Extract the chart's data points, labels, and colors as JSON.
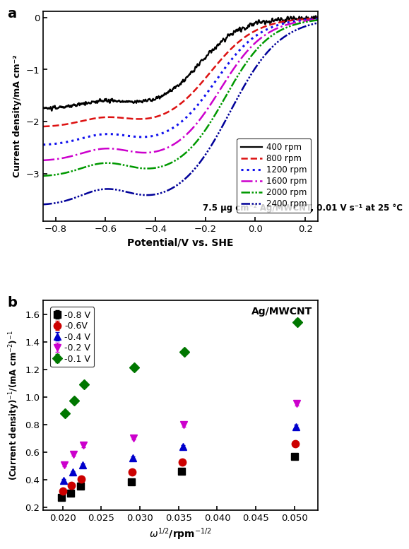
{
  "panel_a": {
    "title": "a",
    "xlabel": "Potential/V vs. SHE",
    "ylabel": "Current density/mA cm⁻²",
    "annotation": "7.5 μg cm⁻² Ag/MWCNT, 0.01 V s⁻¹ at 25 °C",
    "xlim": [
      -0.85,
      0.25
    ],
    "ylim": [
      -3.9,
      0.12
    ],
    "xticks": [
      -0.8,
      -0.6,
      -0.4,
      -0.2,
      0.0,
      0.2
    ],
    "yticks": [
      0,
      -1,
      -2,
      -3
    ],
    "curves": [
      {
        "label": "400 rpm",
        "color": "black",
        "linestyle": "solid",
        "linewidth": 1.6,
        "limit_current": -1.75,
        "midpoint": -0.22,
        "sharpness": 12,
        "noise": 0.035,
        "seed": 1
      },
      {
        "label": "800 rpm",
        "color": "#dd1111",
        "linestyle": "dashed",
        "linewidth": 1.8,
        "limit_current": -2.1,
        "midpoint": -0.18,
        "sharpness": 11,
        "noise": 0.0,
        "seed": 2
      },
      {
        "label": "1200 rpm",
        "color": "#1111ee",
        "linestyle": "dotted",
        "linewidth": 2.2,
        "limit_current": -2.45,
        "midpoint": -0.16,
        "sharpness": 11,
        "noise": 0.0,
        "seed": 3
      },
      {
        "label": "1600 rpm",
        "color": "#cc00cc",
        "linestyle": "dashdot",
        "linewidth": 1.8,
        "limit_current": -2.75,
        "midpoint": -0.14,
        "sharpness": 11,
        "noise": 0.0,
        "seed": 4
      },
      {
        "label": "2000 rpm",
        "color": "#009900",
        "linestyle": "dashdotdotted",
        "linewidth": 1.8,
        "limit_current": -3.05,
        "midpoint": -0.12,
        "sharpness": 11,
        "noise": 0.0,
        "seed": 5
      },
      {
        "label": "2400 rpm",
        "color": "#000099",
        "linestyle": "dashdotted2",
        "linewidth": 1.8,
        "limit_current": -3.6,
        "midpoint": -0.1,
        "sharpness": 10,
        "noise": 0.0,
        "seed": 6
      }
    ]
  },
  "panel_b": {
    "title": "b",
    "annotation": "Ag/MWCNT",
    "xlim": [
      0.0175,
      0.053
    ],
    "ylim": [
      0.18,
      1.7
    ],
    "xticks": [
      0.02,
      0.025,
      0.03,
      0.035,
      0.04,
      0.045,
      0.05
    ],
    "yticks": [
      0.2,
      0.4,
      0.6,
      0.8,
      1.0,
      1.2,
      1.4,
      1.6
    ],
    "series": [
      {
        "label": "-0.8 V",
        "color": "black",
        "marker": "s",
        "x": [
          0.0199,
          0.02108,
          0.02236,
          0.02887,
          0.03536,
          0.05
        ],
        "y": [
          0.27,
          0.305,
          0.355,
          0.385,
          0.46,
          0.57
        ],
        "yerr": [
          0.006,
          0.006,
          0.006,
          0.006,
          0.006,
          0.01
        ]
      },
      {
        "label": "-0.6V",
        "color": "#cc0000",
        "marker": "o",
        "x": [
          0.02,
          0.02118,
          0.02246,
          0.02897,
          0.03546,
          0.0501
        ],
        "y": [
          0.32,
          0.36,
          0.405,
          0.455,
          0.53,
          0.66
        ],
        "yerr": [
          0.006,
          0.006,
          0.008,
          0.008,
          0.01,
          0.01
        ]
      },
      {
        "label": "-0.4 V",
        "color": "#0000cc",
        "marker": "^",
        "x": [
          0.0201,
          0.02128,
          0.02256,
          0.02907,
          0.03556,
          0.0502
        ],
        "y": [
          0.395,
          0.455,
          0.51,
          0.56,
          0.64,
          0.785
        ],
        "yerr": [
          0.008,
          0.008,
          0.01,
          0.01,
          0.012,
          0.015
        ]
      },
      {
        "label": "-0.2 V",
        "color": "#cc00cc",
        "marker": "v",
        "x": [
          0.0202,
          0.02138,
          0.02266,
          0.02917,
          0.03566,
          0.0503
        ],
        "y": [
          0.51,
          0.585,
          0.65,
          0.705,
          0.8,
          0.955
        ],
        "yerr": [
          0.01,
          0.012,
          0.012,
          0.015,
          0.015,
          0.018
        ]
      },
      {
        "label": "-0.1 V",
        "color": "#007700",
        "marker": "D",
        "x": [
          0.0203,
          0.02148,
          0.02276,
          0.02927,
          0.03576,
          0.0504
        ],
        "y": [
          0.88,
          0.975,
          1.09,
          1.215,
          1.33,
          1.545
        ],
        "yerr": [
          0.015,
          0.018,
          0.018,
          0.02,
          0.02,
          0.025
        ]
      }
    ]
  }
}
